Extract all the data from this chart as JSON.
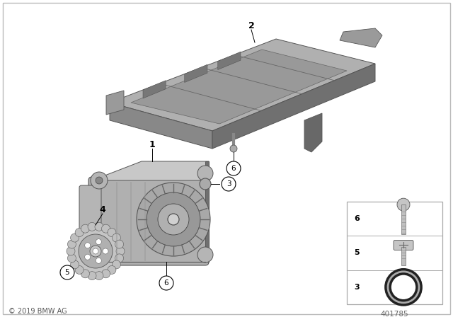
{
  "background_color": "#ffffff",
  "copyright_text": "© 2019 BMW AG",
  "diagram_number": "401785",
  "gray_light": "#c0c0c0",
  "gray_med": "#9a9a9a",
  "gray_dark": "#6a6a6a",
  "gray_darker": "#505050",
  "gray_pump_light": "#b8b8b8",
  "gray_pump_med": "#949494",
  "gray_pump_dark": "#707070",
  "gray_pan_top": "#aaaaaa",
  "gray_pan_side": "#888888",
  "gray_pan_dark": "#5a5a5a"
}
